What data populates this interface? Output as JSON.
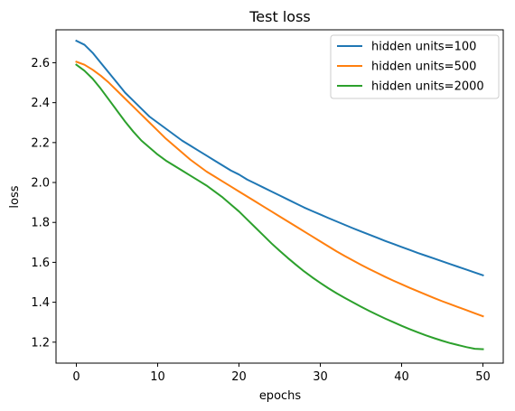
{
  "chart_data": {
    "type": "line",
    "title": "Test loss",
    "xlabel": "epochs",
    "ylabel": "loss",
    "xlim": [
      -2.5,
      52.5
    ],
    "ylim": [
      1.095,
      2.765
    ],
    "xticks": [
      0,
      10,
      20,
      30,
      40,
      50
    ],
    "yticks": [
      1.2,
      1.4,
      1.6,
      1.8,
      2.0,
      2.2,
      2.4,
      2.6
    ],
    "grid": false,
    "legend_position": "top-right",
    "x": [
      0,
      1,
      2,
      3,
      4,
      5,
      6,
      7,
      8,
      9,
      10,
      11,
      12,
      13,
      14,
      15,
      16,
      17,
      18,
      19,
      20,
      21,
      22,
      23,
      24,
      25,
      26,
      27,
      28,
      29,
      30,
      31,
      32,
      33,
      34,
      35,
      36,
      37,
      38,
      39,
      40,
      41,
      42,
      43,
      44,
      45,
      46,
      47,
      48,
      49,
      50
    ],
    "series": [
      {
        "name": "hidden units=100",
        "color": "#1f77b4",
        "values": [
          2.71,
          2.69,
          2.65,
          2.6,
          2.55,
          2.5,
          2.45,
          2.41,
          2.37,
          2.33,
          2.3,
          2.27,
          2.24,
          2.21,
          2.185,
          2.16,
          2.135,
          2.11,
          2.085,
          2.06,
          2.04,
          2.015,
          1.995,
          1.975,
          1.955,
          1.935,
          1.915,
          1.895,
          1.875,
          1.857,
          1.84,
          1.822,
          1.805,
          1.788,
          1.771,
          1.755,
          1.739,
          1.723,
          1.707,
          1.692,
          1.677,
          1.662,
          1.647,
          1.633,
          1.619,
          1.605,
          1.591,
          1.577,
          1.563,
          1.549,
          1.535
        ]
      },
      {
        "name": "hidden units=500",
        "color": "#ff7f0e",
        "values": [
          2.605,
          2.59,
          2.565,
          2.535,
          2.5,
          2.46,
          2.42,
          2.38,
          2.34,
          2.3,
          2.26,
          2.22,
          2.185,
          2.15,
          2.115,
          2.085,
          2.055,
          2.03,
          2.005,
          1.98,
          1.955,
          1.93,
          1.905,
          1.88,
          1.855,
          1.83,
          1.805,
          1.78,
          1.755,
          1.73,
          1.705,
          1.68,
          1.655,
          1.632,
          1.61,
          1.588,
          1.567,
          1.547,
          1.527,
          1.508,
          1.49,
          1.472,
          1.455,
          1.438,
          1.421,
          1.405,
          1.39,
          1.375,
          1.36,
          1.345,
          1.33
        ]
      },
      {
        "name": "hidden units=2000",
        "color": "#2ca02c",
        "values": [
          2.59,
          2.56,
          2.52,
          2.47,
          2.415,
          2.36,
          2.305,
          2.255,
          2.21,
          2.175,
          2.14,
          2.11,
          2.085,
          2.06,
          2.035,
          2.01,
          1.985,
          1.955,
          1.925,
          1.89,
          1.855,
          1.815,
          1.775,
          1.735,
          1.695,
          1.658,
          1.622,
          1.588,
          1.555,
          1.525,
          1.497,
          1.47,
          1.445,
          1.422,
          1.4,
          1.378,
          1.357,
          1.337,
          1.318,
          1.3,
          1.282,
          1.265,
          1.249,
          1.234,
          1.22,
          1.207,
          1.195,
          1.185,
          1.175,
          1.167,
          1.165
        ]
      }
    ]
  }
}
